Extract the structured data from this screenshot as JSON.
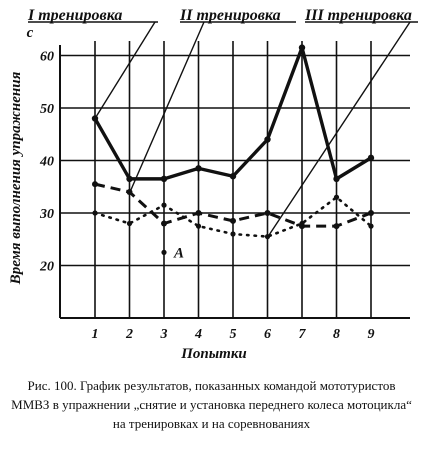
{
  "chart_data": {
    "type": "line",
    "ylabel": "Время выполнения упражнения",
    "y_unit": "с",
    "xlabel": "Попытки",
    "x": [
      1,
      2,
      3,
      4,
      5,
      6,
      7,
      8,
      9
    ],
    "ylim": [
      10,
      62
    ],
    "yticks": [
      20,
      30,
      40,
      50,
      60
    ],
    "grid": true,
    "series": [
      {
        "name": "I тренировка",
        "style": "solid",
        "values": [
          48,
          36.5,
          36.5,
          38.5,
          37,
          44,
          61.5,
          36.5,
          40.5
        ]
      },
      {
        "name": "II тренировка",
        "style": "dashed",
        "values": [
          35.5,
          34,
          28,
          30,
          28.5,
          30,
          27.5,
          27.5,
          30
        ]
      },
      {
        "name": "III тренировка",
        "style": "dotted",
        "values": [
          30,
          28,
          31.5,
          27.5,
          26,
          25.5,
          28,
          33,
          27.5
        ]
      }
    ],
    "annotations": [
      {
        "text": "A",
        "x": 3,
        "y": 22.5
      }
    ]
  },
  "caption": "Рис. 100. График результатов, показанных командой мототуристов ММВЗ в упражнении „снятие и установка переднего колеса мотоцикла“ на тренировках и на соревнованиях"
}
